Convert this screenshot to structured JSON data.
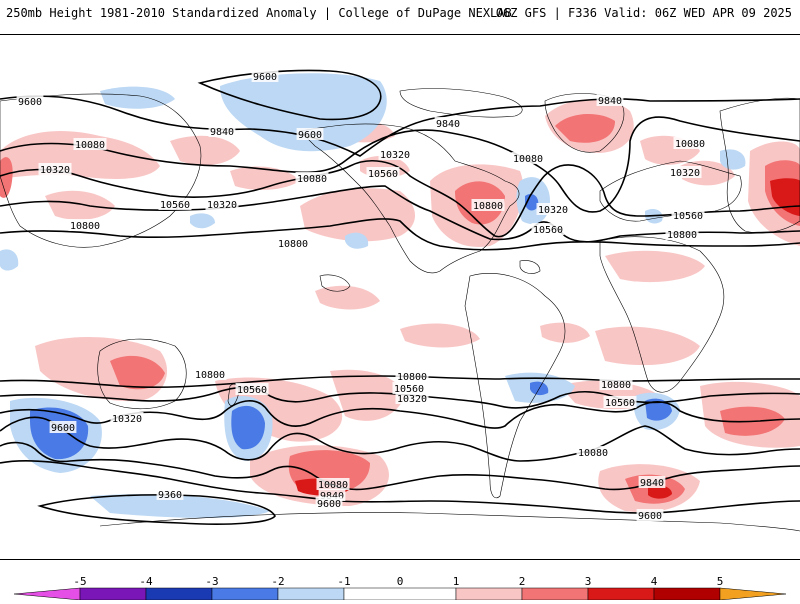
{
  "header": {
    "title_left": "250mb Height 1981-2010 Standardized Anomaly | College of DuPage NEXLAB",
    "title_right": "06Z GFS | F336 Valid: 06Z WED APR 09 2025"
  },
  "colors": {
    "neg5": "#e64fe6",
    "neg4": "#7a16b8",
    "neg3": "#1a3ab4",
    "neg2": "#4a7ae6",
    "neg1": "#bcd8f4",
    "zero": "#ffffff",
    "pos1": "#f9c6c6",
    "pos2": "#f27474",
    "pos3": "#d91818",
    "pos4": "#b00000",
    "pos5": "#f2a020",
    "contour": "#000000",
    "coast": "#000000"
  },
  "colorbar": {
    "ticks": [
      "-5",
      "-4",
      "-3",
      "-2",
      "-1",
      "0",
      "1",
      "2",
      "3",
      "4",
      "5"
    ]
  },
  "contour_labels": {
    "nh": [
      "9600",
      "9600",
      "9600",
      "9840",
      "9840",
      "9840",
      "10080",
      "10080",
      "10080",
      "10080",
      "10320",
      "10320",
      "10320",
      "10320",
      "10560",
      "10560",
      "10560",
      "10560",
      "10800",
      "10800",
      "10800",
      "10800",
      "10320"
    ],
    "sh": [
      "10800",
      "10800",
      "10800",
      "10560",
      "10560",
      "10560",
      "10320",
      "10320",
      "9600",
      "10080",
      "10080",
      "9840",
      "9840",
      "9600",
      "9360",
      "9600"
    ]
  }
}
